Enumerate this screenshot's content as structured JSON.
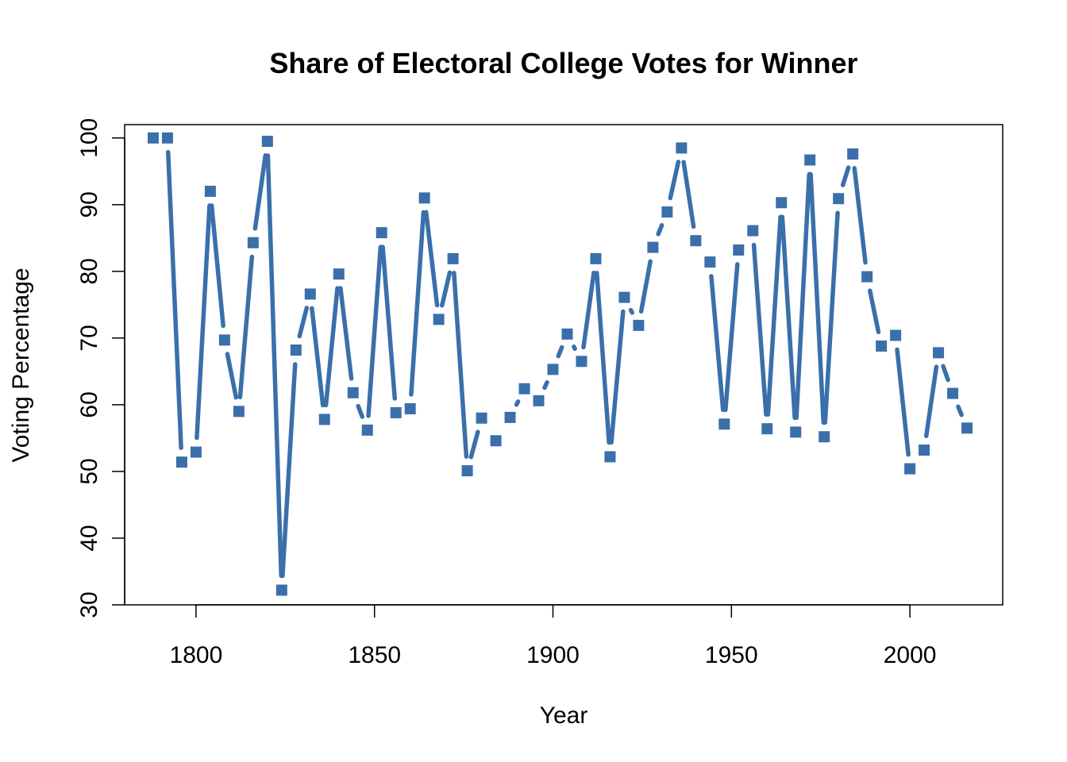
{
  "chart_data": {
    "type": "line",
    "title": "Share of Electoral College Votes for Winner",
    "xlabel": "Year",
    "ylabel": "Voting Percentage",
    "xlim": [
      1780,
      2026
    ],
    "ylim": [
      30,
      102
    ],
    "x_ticks": [
      1800,
      1850,
      1900,
      1950,
      2000
    ],
    "y_ticks": [
      30,
      40,
      50,
      60,
      70,
      80,
      90,
      100
    ],
    "grid": false,
    "legend": "none",
    "color": "#3a6fab",
    "marker": "square",
    "line_style": "overplotted (type b)",
    "x": [
      1788,
      1792,
      1796,
      1800,
      1804,
      1808,
      1812,
      1816,
      1820,
      1824,
      1828,
      1832,
      1836,
      1840,
      1844,
      1848,
      1852,
      1856,
      1860,
      1864,
      1868,
      1872,
      1876,
      1880,
      1884,
      1888,
      1892,
      1896,
      1900,
      1904,
      1908,
      1912,
      1916,
      1920,
      1924,
      1928,
      1932,
      1936,
      1940,
      1944,
      1948,
      1952,
      1956,
      1960,
      1964,
      1968,
      1972,
      1976,
      1980,
      1984,
      1988,
      1992,
      1996,
      2000,
      2004,
      2008,
      2012,
      2016
    ],
    "series": [
      {
        "values": [
          100,
          100,
          51.4,
          52.9,
          92.0,
          69.7,
          59.0,
          84.3,
          99.5,
          32.2,
          68.2,
          76.6,
          57.8,
          79.6,
          61.8,
          56.2,
          85.8,
          58.8,
          59.4,
          91.0,
          72.8,
          81.9,
          50.1,
          58.0,
          54.6,
          58.1,
          62.4,
          60.6,
          65.3,
          70.6,
          66.5,
          81.9,
          52.2,
          76.1,
          71.9,
          83.6,
          88.9,
          98.5,
          84.6,
          81.4,
          57.1,
          83.2,
          86.1,
          56.4,
          90.3,
          55.9,
          96.7,
          55.2,
          90.9,
          97.6,
          79.2,
          68.8,
          70.4,
          50.4,
          53.2,
          67.8,
          61.7,
          56.5
        ]
      }
    ]
  }
}
